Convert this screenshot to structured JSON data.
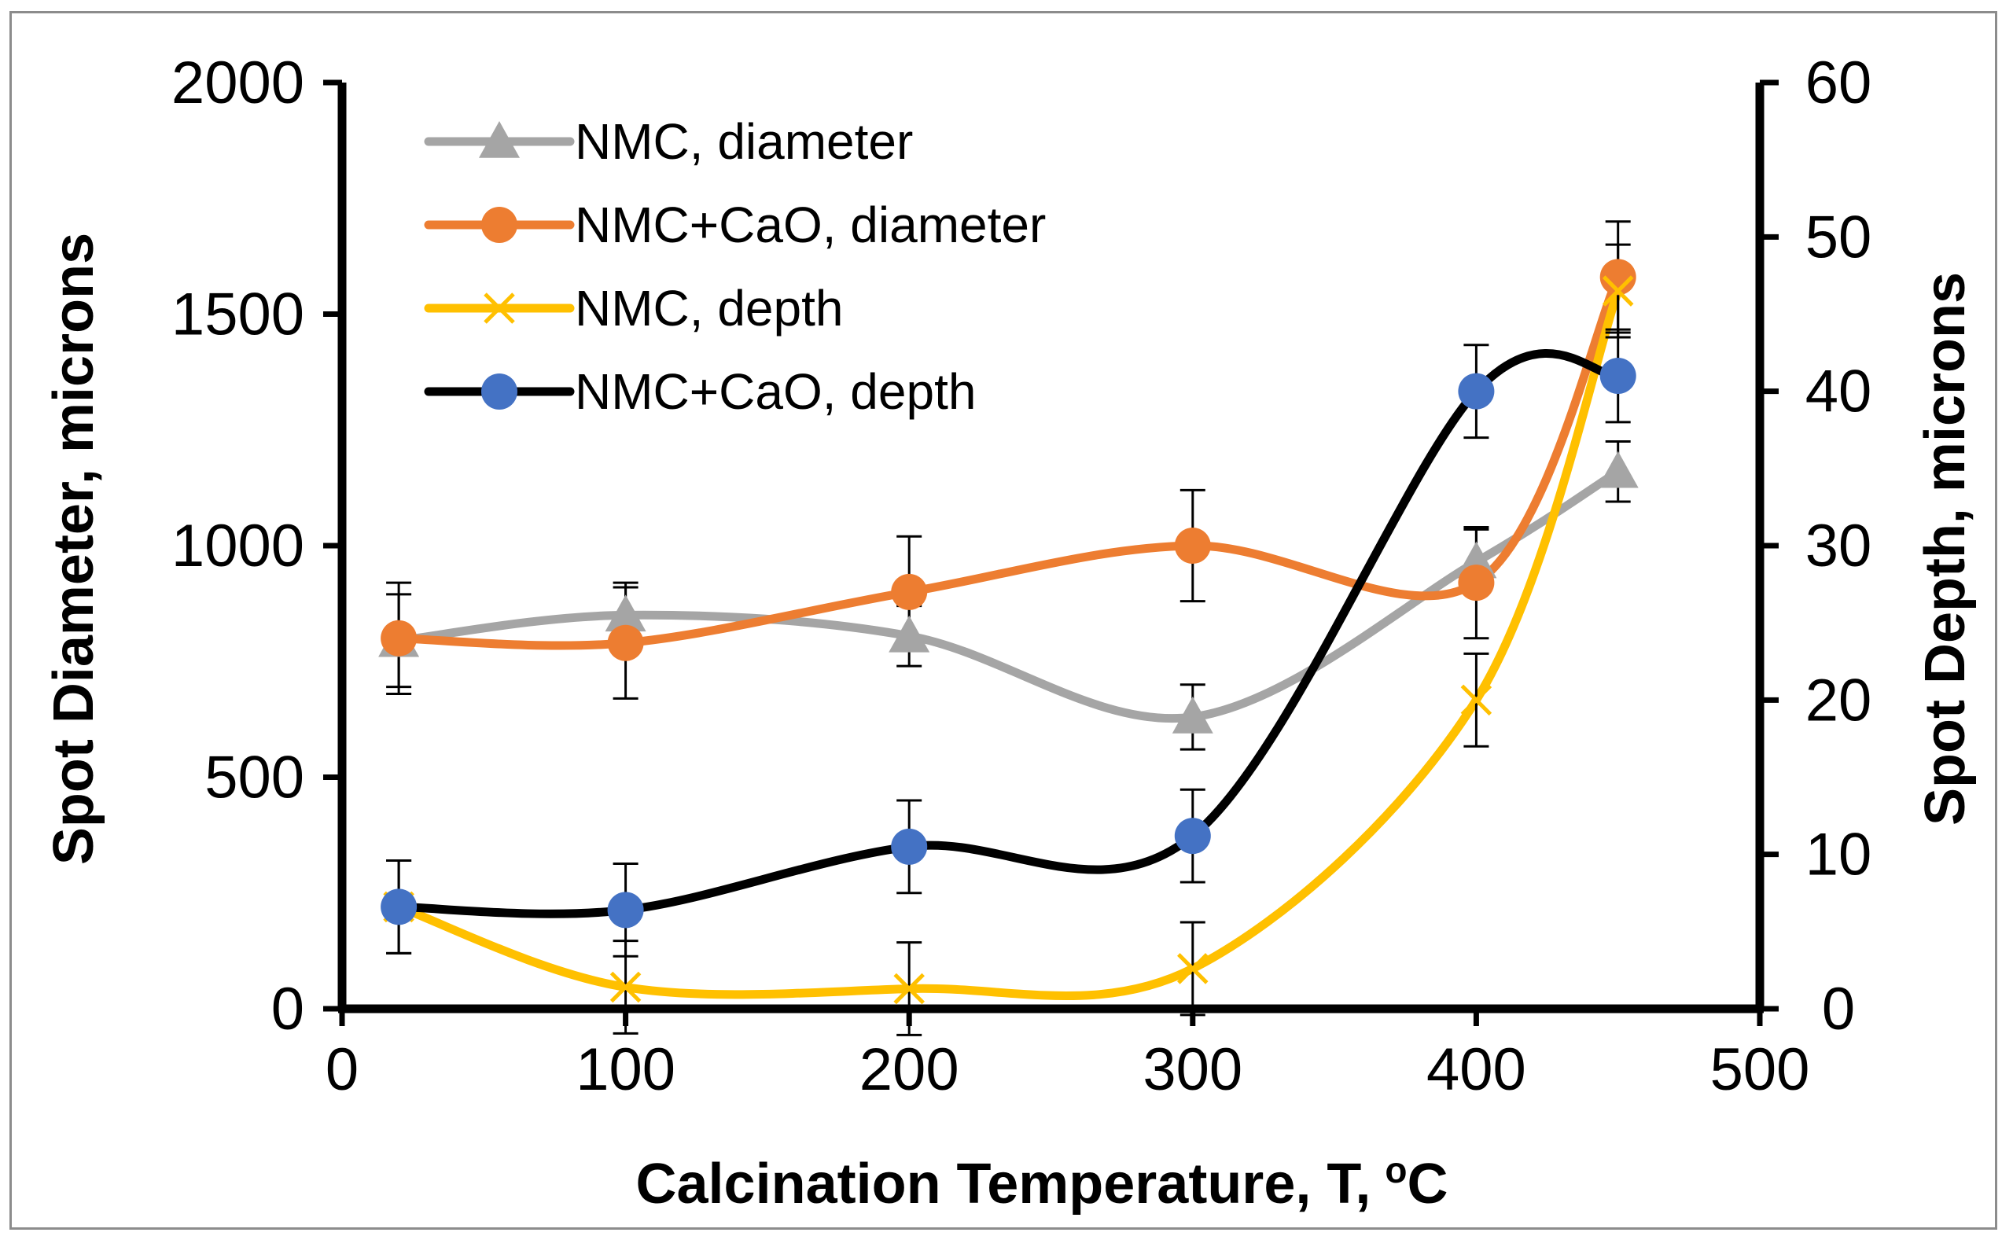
{
  "chart_data": {
    "type": "line",
    "smooth": true,
    "xlabel": "Calcination Temperature, T,",
    "xlabel_unit": "C",
    "xlabel_degree_mark": "o",
    "ylabel_left": "Spot Diameter, microns",
    "ylabel_right": "Spot Depth, microns",
    "xlim": [
      0,
      500
    ],
    "ylim_left": [
      0,
      2000
    ],
    "ylim_right": [
      0,
      60
    ],
    "x_ticks": [
      0,
      100,
      200,
      300,
      400,
      500
    ],
    "y_left_ticks": [
      0,
      500,
      1000,
      1500,
      2000
    ],
    "y_right_ticks": [
      0,
      10,
      20,
      30,
      40,
      50,
      60
    ],
    "legend_position": "top-left",
    "series": [
      {
        "name": "NMC, diameter",
        "axis": "left",
        "color": "#a5a5a5",
        "marker": "triangle",
        "x": [
          20,
          100,
          200,
          300,
          400,
          450
        ],
        "y": [
          795,
          850,
          805,
          630,
          965,
          1160
        ],
        "err": [
          100,
          70,
          65,
          70,
          70,
          65
        ]
      },
      {
        "name": "NMC+CaO, diameter",
        "axis": "left",
        "color": "#ed7d31",
        "marker": "circle",
        "x": [
          20,
          100,
          200,
          300,
          400,
          450
        ],
        "y": [
          800,
          790,
          900,
          1000,
          920,
          1580
        ],
        "err": [
          120,
          120,
          120,
          120,
          120,
          120
        ]
      },
      {
        "name": "NMC, depth",
        "axis": "right",
        "color": "#ffc000",
        "marker": "x",
        "x": [
          20,
          100,
          200,
          300,
          400,
          450
        ],
        "y": [
          6.6,
          1.4,
          1.3,
          2.6,
          20,
          46.5
        ],
        "err": [
          3,
          3,
          3,
          3,
          3,
          3
        ]
      },
      {
        "name": "NMC+CaO, depth",
        "axis": "right",
        "color": "#000000",
        "marker": "circle",
        "marker_color": "#4472c4",
        "x": [
          20,
          100,
          200,
          300,
          400,
          450
        ],
        "y": [
          6.6,
          6.4,
          10.5,
          11.2,
          40,
          41
        ],
        "err": [
          3,
          3,
          3,
          3,
          3,
          3
        ]
      }
    ]
  }
}
